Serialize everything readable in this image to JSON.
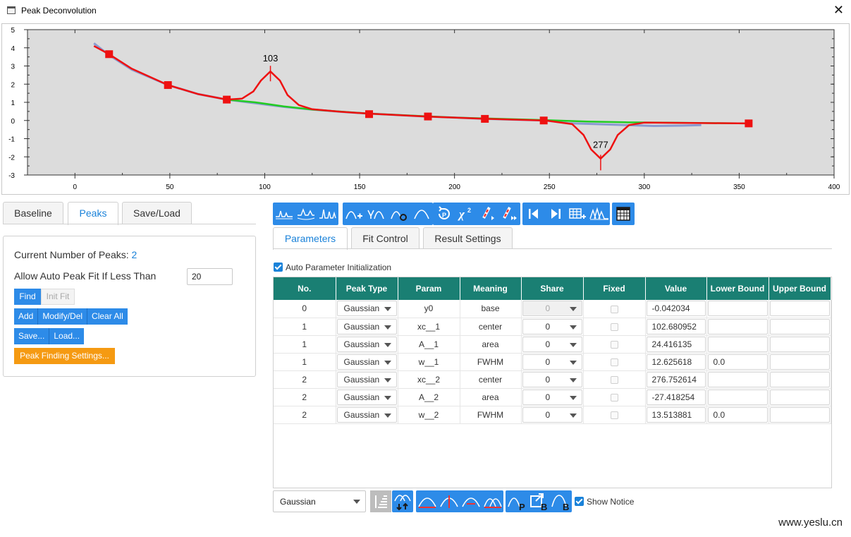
{
  "window": {
    "title": "Peak Deconvolution",
    "close_glyph": "✕"
  },
  "chart_data": {
    "type": "line",
    "title": "",
    "xlabel": "",
    "ylabel": "",
    "xlim": [
      -25,
      400
    ],
    "ylim": [
      -3,
      5
    ],
    "x_ticks": [
      0,
      50,
      100,
      150,
      200,
      250,
      300,
      350,
      400
    ],
    "y_ticks": [
      5,
      4,
      3,
      2,
      1,
      0,
      -1,
      -2,
      -3
    ],
    "grid": false,
    "background": "#dcdcdc",
    "series": [
      {
        "role": "data",
        "color": "#8a9ad0",
        "x": [
          10,
          18,
          30,
          49,
          65,
          80,
          95,
          110,
          125,
          140,
          155,
          170,
          185,
          200,
          215,
          230,
          248,
          260,
          275,
          290,
          305,
          320,
          330
        ],
        "y": [
          4.25,
          3.6,
          2.8,
          1.95,
          1.45,
          1.15,
          0.95,
          0.75,
          0.6,
          0.48,
          0.38,
          0.3,
          0.22,
          0.16,
          0.1,
          0.05,
          0.0,
          -0.15,
          -0.2,
          -0.25,
          -0.3,
          -0.28,
          -0.25
        ]
      },
      {
        "role": "baseline",
        "color": "#22cc22",
        "x": [
          80,
          95,
          110,
          125,
          155,
          200,
          248,
          270,
          290,
          310,
          355
        ],
        "y": [
          1.15,
          1.0,
          0.78,
          0.6,
          0.38,
          0.16,
          0.02,
          -0.06,
          -0.1,
          -0.12,
          -0.16
        ]
      },
      {
        "role": "fit",
        "color": "#ee1111",
        "x": [
          10,
          18,
          30,
          49,
          65,
          80,
          88,
          94,
          98,
          103,
          108,
          112,
          118,
          125,
          140,
          155,
          185,
          215,
          248,
          262,
          268,
          272,
          277,
          282,
          286,
          292,
          300,
          330,
          355
        ],
        "y": [
          4.1,
          3.65,
          2.85,
          1.95,
          1.45,
          1.15,
          1.2,
          1.6,
          2.2,
          2.7,
          2.2,
          1.4,
          0.85,
          0.62,
          0.48,
          0.38,
          0.22,
          0.1,
          0.0,
          -0.2,
          -0.8,
          -1.6,
          -2.1,
          -1.6,
          -0.8,
          -0.25,
          -0.12,
          -0.14,
          -0.16
        ]
      }
    ],
    "anchor_points": {
      "x": [
        18,
        49,
        80,
        155,
        186,
        216,
        247,
        355
      ],
      "y": [
        3.65,
        1.95,
        1.15,
        0.35,
        0.22,
        0.09,
        0.0,
        -0.16
      ]
    },
    "annotations": [
      {
        "label": "103",
        "x": 103,
        "y": 2.7
      },
      {
        "label": "277",
        "x": 277,
        "y": -2.2
      }
    ]
  },
  "left_tabs": [
    "Baseline",
    "Peaks",
    "Save/Load"
  ],
  "peaks_panel": {
    "count_label": "Current Number of Peaks:",
    "count_value": "2",
    "auto_label": "Allow Auto Peak Fit If Less Than",
    "auto_value": "20",
    "find": "Find",
    "init_fit": "Init Fit",
    "add": "Add",
    "modify": "Modify/Del",
    "clear": "Clear All",
    "save": "Save...",
    "load": "Load...",
    "settings": "Peak Finding Settings..."
  },
  "right_tabs": [
    "Parameters",
    "Fit Control",
    "Result Settings"
  ],
  "auto_param": "Auto Parameter Initialization",
  "table": {
    "headers": [
      "No.",
      "Peak Type",
      "Param",
      "Meaning",
      "Share",
      "Fixed",
      "Value",
      "Lower Bound",
      "Upper Bound"
    ],
    "rows": [
      {
        "no": "0",
        "type": "Gaussian",
        "param": "y0",
        "meaning": "base",
        "share": "0",
        "value": "-0.042034",
        "lower": "",
        "upper": ""
      },
      {
        "no": "1",
        "type": "Gaussian",
        "param": "xc__1",
        "meaning": "center",
        "share": "0",
        "value": "102.680952",
        "lower": "",
        "upper": ""
      },
      {
        "no": "1",
        "type": "Gaussian",
        "param": "A__1",
        "meaning": "area",
        "share": "0",
        "value": "24.416135",
        "lower": "",
        "upper": ""
      },
      {
        "no": "1",
        "type": "Gaussian",
        "param": "w__1",
        "meaning": "FWHM",
        "share": "0",
        "value": "12.625618",
        "lower": "0.0",
        "upper": ""
      },
      {
        "no": "2",
        "type": "Gaussian",
        "param": "xc__2",
        "meaning": "center",
        "share": "0",
        "value": "276.752614",
        "lower": "",
        "upper": ""
      },
      {
        "no": "2",
        "type": "Gaussian",
        "param": "A__2",
        "meaning": "area",
        "share": "0",
        "value": "-27.418254",
        "lower": "",
        "upper": ""
      },
      {
        "no": "2",
        "type": "Gaussian",
        "param": "w__2",
        "meaning": "FWHM",
        "share": "0",
        "value": "13.513881",
        "lower": "0.0",
        "upper": ""
      }
    ]
  },
  "bottom": {
    "peak_type": "Gaussian",
    "show_notice": "Show Notice"
  },
  "toolbar_icons": [
    "baseline-view-icon",
    "peaks-view-icon",
    "residual-view-icon",
    "add-peak-icon",
    "find-peak-icon",
    "modify-peak-icon",
    "peak-shape-icon",
    "undo-icon",
    "chi-square-icon",
    "fit-step-icon",
    "fit-all-icon",
    "prev-icon",
    "next-icon",
    "add-table-icon",
    "peaks-overlay-icon",
    "report-table-icon"
  ],
  "watermark": "www.yeslu.cn"
}
